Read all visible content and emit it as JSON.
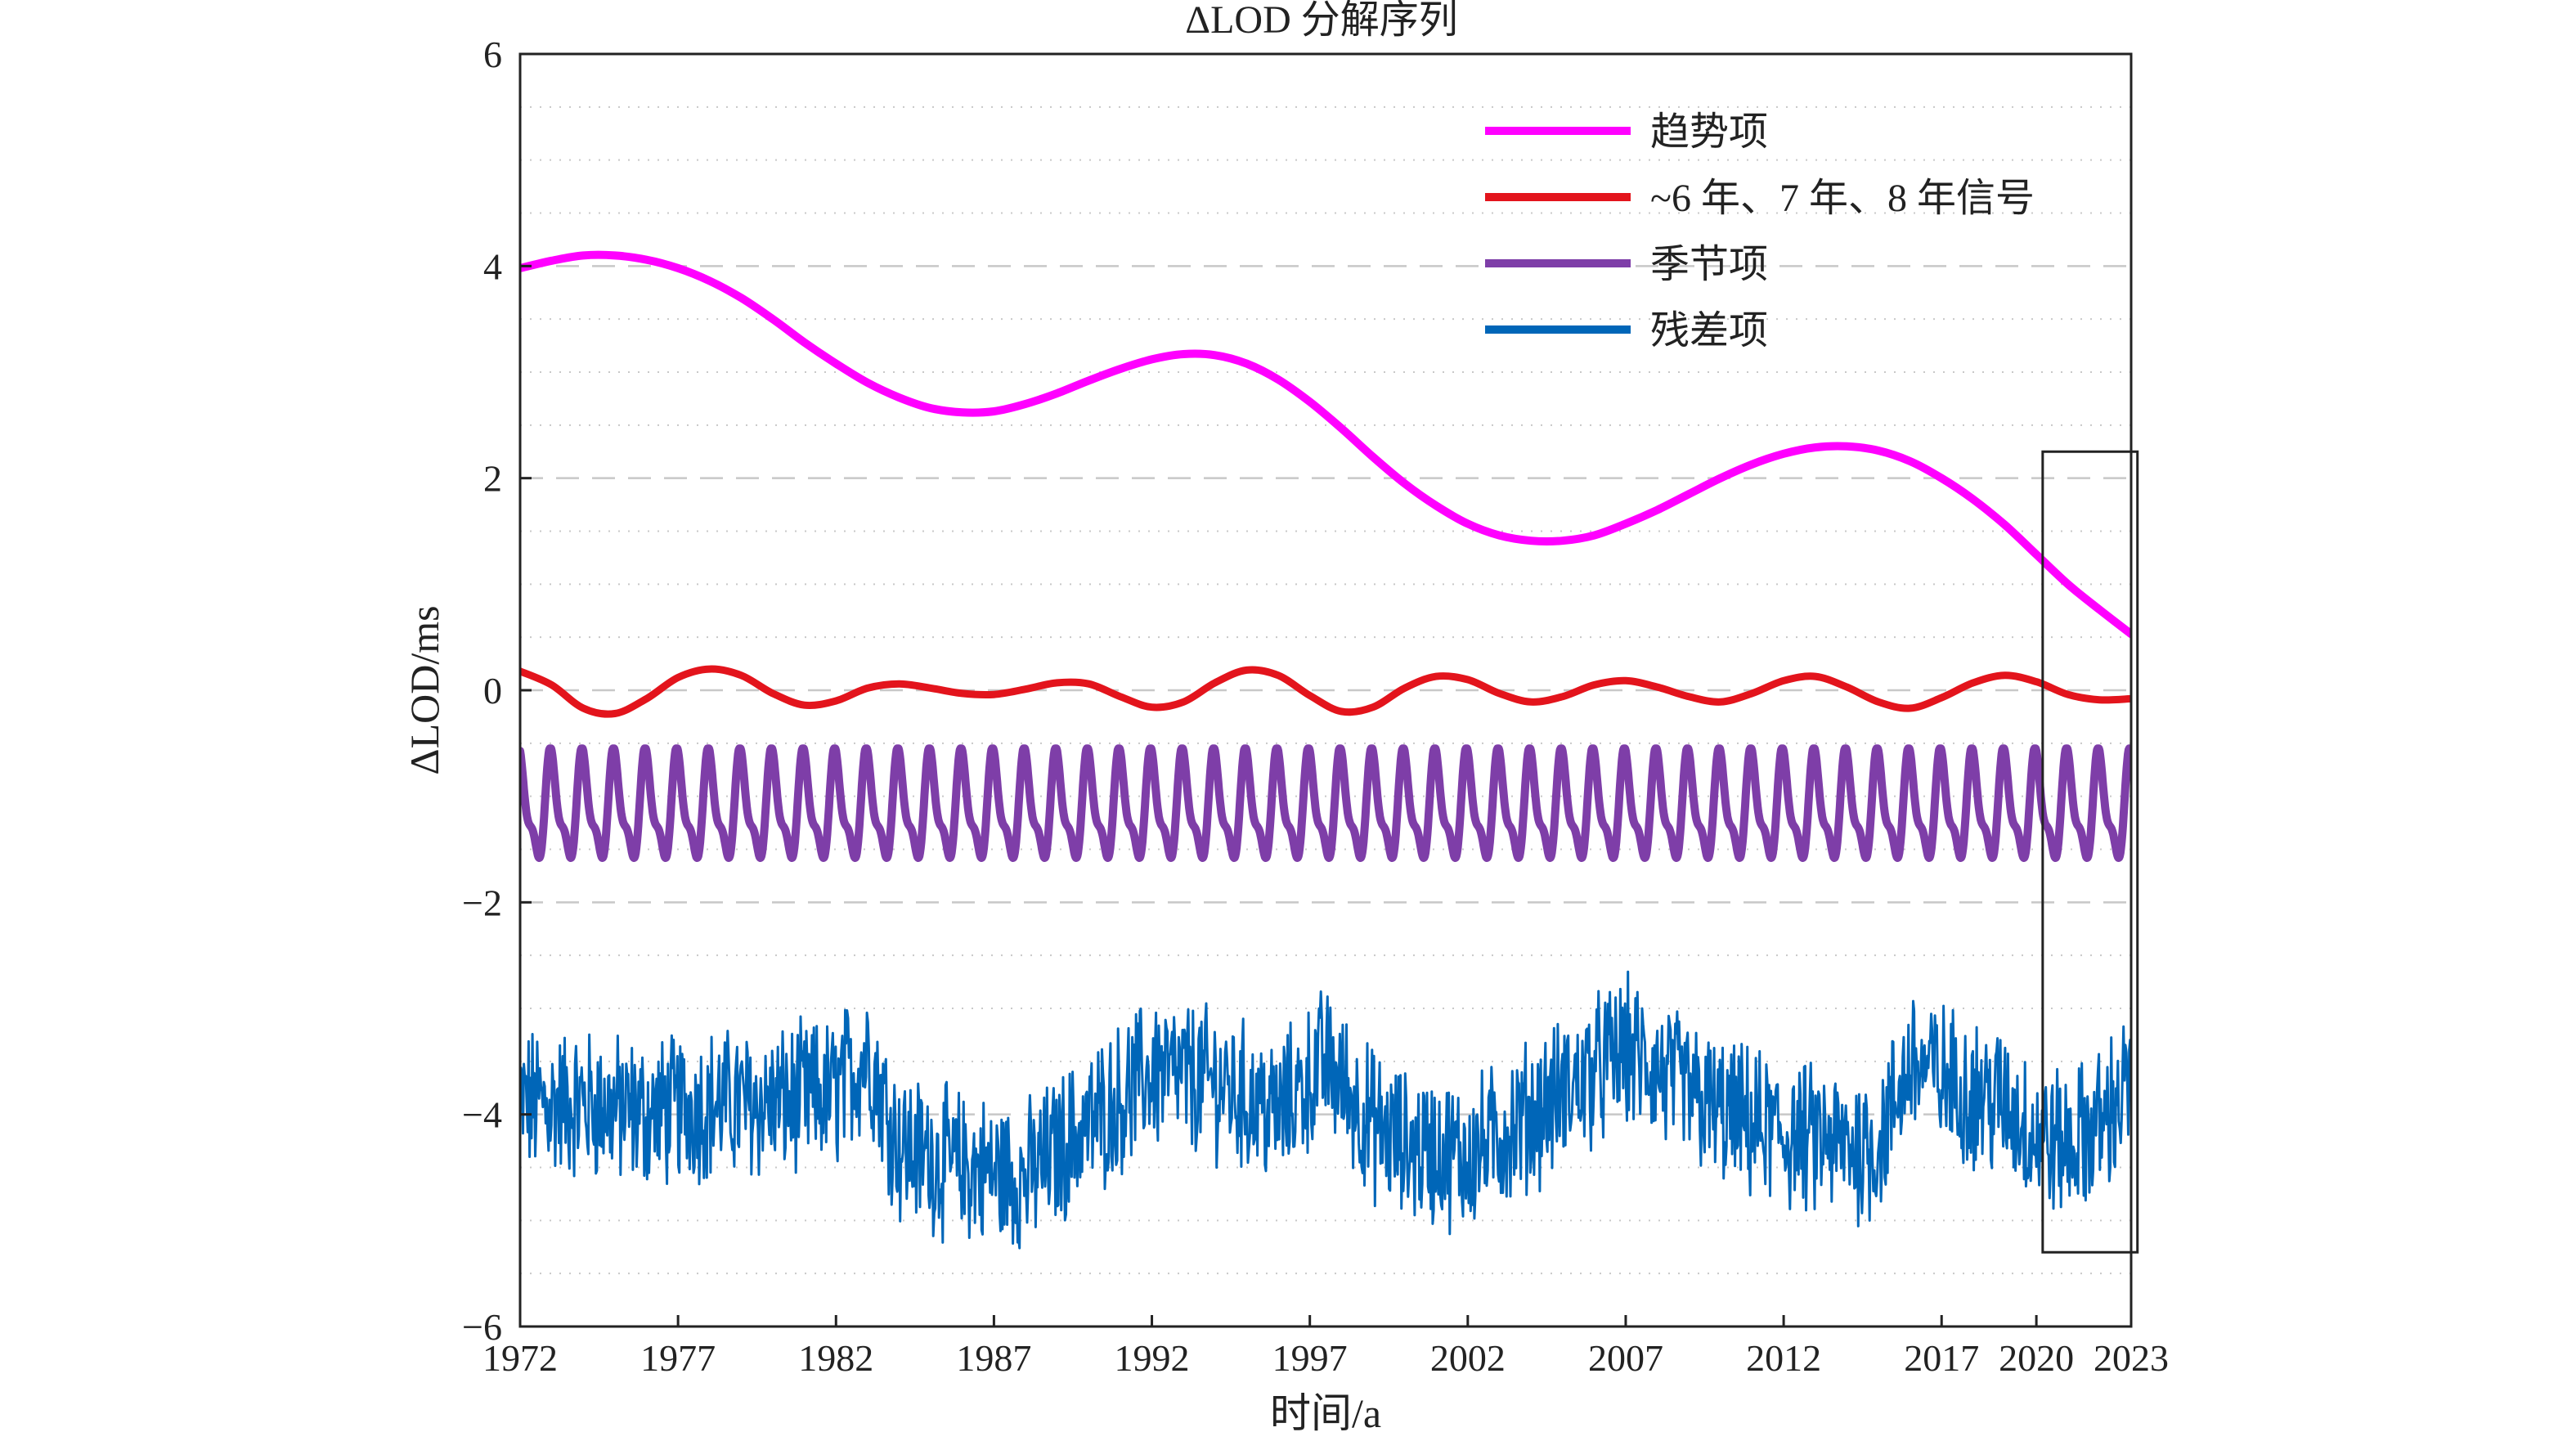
{
  "chart_data": {
    "type": "line",
    "title": "ΔLOD 分解序列",
    "xlabel": "时间/a",
    "ylabel": "ΔLOD/ms",
    "xlim": [
      1972,
      2023
    ],
    "ylim": [
      -6,
      6
    ],
    "x_ticks": [
      1972,
      1977,
      1982,
      1987,
      1992,
      1997,
      2002,
      2007,
      2012,
      2017,
      2020,
      2023
    ],
    "x_tick_labels": [
      "1972",
      "1977",
      "1982",
      "1987",
      "1992",
      "1997",
      "2002",
      "2007",
      "2012",
      "2017",
      "2020",
      "2023"
    ],
    "y_ticks": [
      -6,
      -4,
      -2,
      0,
      2,
      4,
      6
    ],
    "y_tick_labels": [
      "−6",
      "−4",
      "−2",
      "0",
      "2",
      "4",
      "6"
    ],
    "grid": {
      "major_y": "dashed",
      "minor_y": "dotted"
    },
    "legend_position": "top-right",
    "highlight_box": {
      "x_range": [
        2020.2,
        2023.2
      ],
      "y_range": [
        -5.3,
        2.25
      ]
    },
    "series": [
      {
        "name": "趋势项",
        "color": "#ff00ff",
        "kind": "smooth",
        "x": [
          1972,
          1973,
          1974,
          1975,
          1976,
          1977,
          1978,
          1979,
          1980,
          1981,
          1982,
          1983,
          1984,
          1985,
          1986,
          1987,
          1988,
          1989,
          1990,
          1991,
          1992,
          1993,
          1994,
          1995,
          1996,
          1997,
          1998,
          1999,
          2000,
          2001,
          2002,
          2003,
          2004,
          2005,
          2006,
          2007,
          2008,
          2009,
          2010,
          2011,
          2012,
          2013,
          2014,
          2015,
          2016,
          2017,
          2018,
          2019,
          2020,
          2021,
          2022,
          2023
        ],
        "y": [
          3.98,
          4.05,
          4.1,
          4.1,
          4.06,
          3.98,
          3.86,
          3.7,
          3.5,
          3.28,
          3.08,
          2.9,
          2.76,
          2.66,
          2.62,
          2.63,
          2.7,
          2.8,
          2.92,
          3.03,
          3.12,
          3.17,
          3.16,
          3.08,
          2.93,
          2.72,
          2.47,
          2.2,
          1.95,
          1.74,
          1.57,
          1.46,
          1.41,
          1.41,
          1.46,
          1.57,
          1.7,
          1.85,
          2.0,
          2.13,
          2.23,
          2.29,
          2.3,
          2.26,
          2.16,
          2.0,
          1.8,
          1.56,
          1.28,
          1.0,
          0.76,
          0.53
        ]
      },
      {
        "name": "~6 年、7 年、8 年信号",
        "color": "#e3141c",
        "kind": "smooth",
        "x": [
          1972,
          1973,
          1974,
          1975,
          1976,
          1977,
          1978,
          1979,
          1980,
          1981,
          1982,
          1983,
          1984,
          1985,
          1986,
          1987,
          1988,
          1989,
          1990,
          1991,
          1992,
          1993,
          1994,
          1995,
          1996,
          1997,
          1998,
          1999,
          2000,
          2001,
          2002,
          2003,
          2004,
          2005,
          2006,
          2007,
          2008,
          2009,
          2010,
          2011,
          2012,
          2013,
          2014,
          2015,
          2016,
          2017,
          2018,
          2019,
          2020,
          2021,
          2022,
          2023
        ],
        "y": [
          0.18,
          0.05,
          -0.17,
          -0.22,
          -0.08,
          0.12,
          0.2,
          0.14,
          -0.03,
          -0.14,
          -0.1,
          0.02,
          0.06,
          0.02,
          -0.03,
          -0.04,
          0.01,
          0.07,
          0.06,
          -0.06,
          -0.16,
          -0.11,
          0.07,
          0.19,
          0.14,
          -0.05,
          -0.2,
          -0.16,
          0.02,
          0.13,
          0.1,
          -0.03,
          -0.11,
          -0.06,
          0.05,
          0.09,
          0.03,
          -0.06,
          -0.11,
          -0.03,
          0.09,
          0.13,
          0.03,
          -0.11,
          -0.17,
          -0.07,
          0.07,
          0.14,
          0.08,
          -0.04,
          -0.09,
          -0.08
        ]
      },
      {
        "name": "季节项",
        "color": "#7e3ea8",
        "kind": "periodic",
        "x_range": [
          1972,
          2023
        ],
        "cycles_per_year": 1,
        "max": -0.55,
        "min": -1.7
      },
      {
        "name": "残差项",
        "color": "#0066b8",
        "kind": "noisy",
        "noise_amplitude": 0.45,
        "x": [
          1972,
          1974,
          1976,
          1978,
          1980,
          1982,
          1983,
          1984,
          1986,
          1988,
          1990,
          1992,
          1994,
          1996,
          1997.5,
          1999,
          2000,
          2002,
          2004,
          2005,
          2006,
          2007,
          2008,
          2010,
          2012,
          2014,
          2015,
          2016,
          2018,
          2019,
          2020,
          2021,
          2022,
          2023
        ],
        "y": [
          -3.9,
          -3.9,
          -4.0,
          -3.9,
          -3.9,
          -3.8,
          -3.4,
          -4.3,
          -4.5,
          -4.6,
          -4.1,
          -3.6,
          -3.7,
          -4.0,
          -3.5,
          -4.1,
          -4.3,
          -4.4,
          -4.0,
          -3.8,
          -3.6,
          -3.4,
          -3.6,
          -4.0,
          -4.2,
          -4.3,
          -4.3,
          -3.5,
          -3.8,
          -3.9,
          -4.2,
          -4.3,
          -4.1,
          -3.7
        ]
      }
    ]
  }
}
